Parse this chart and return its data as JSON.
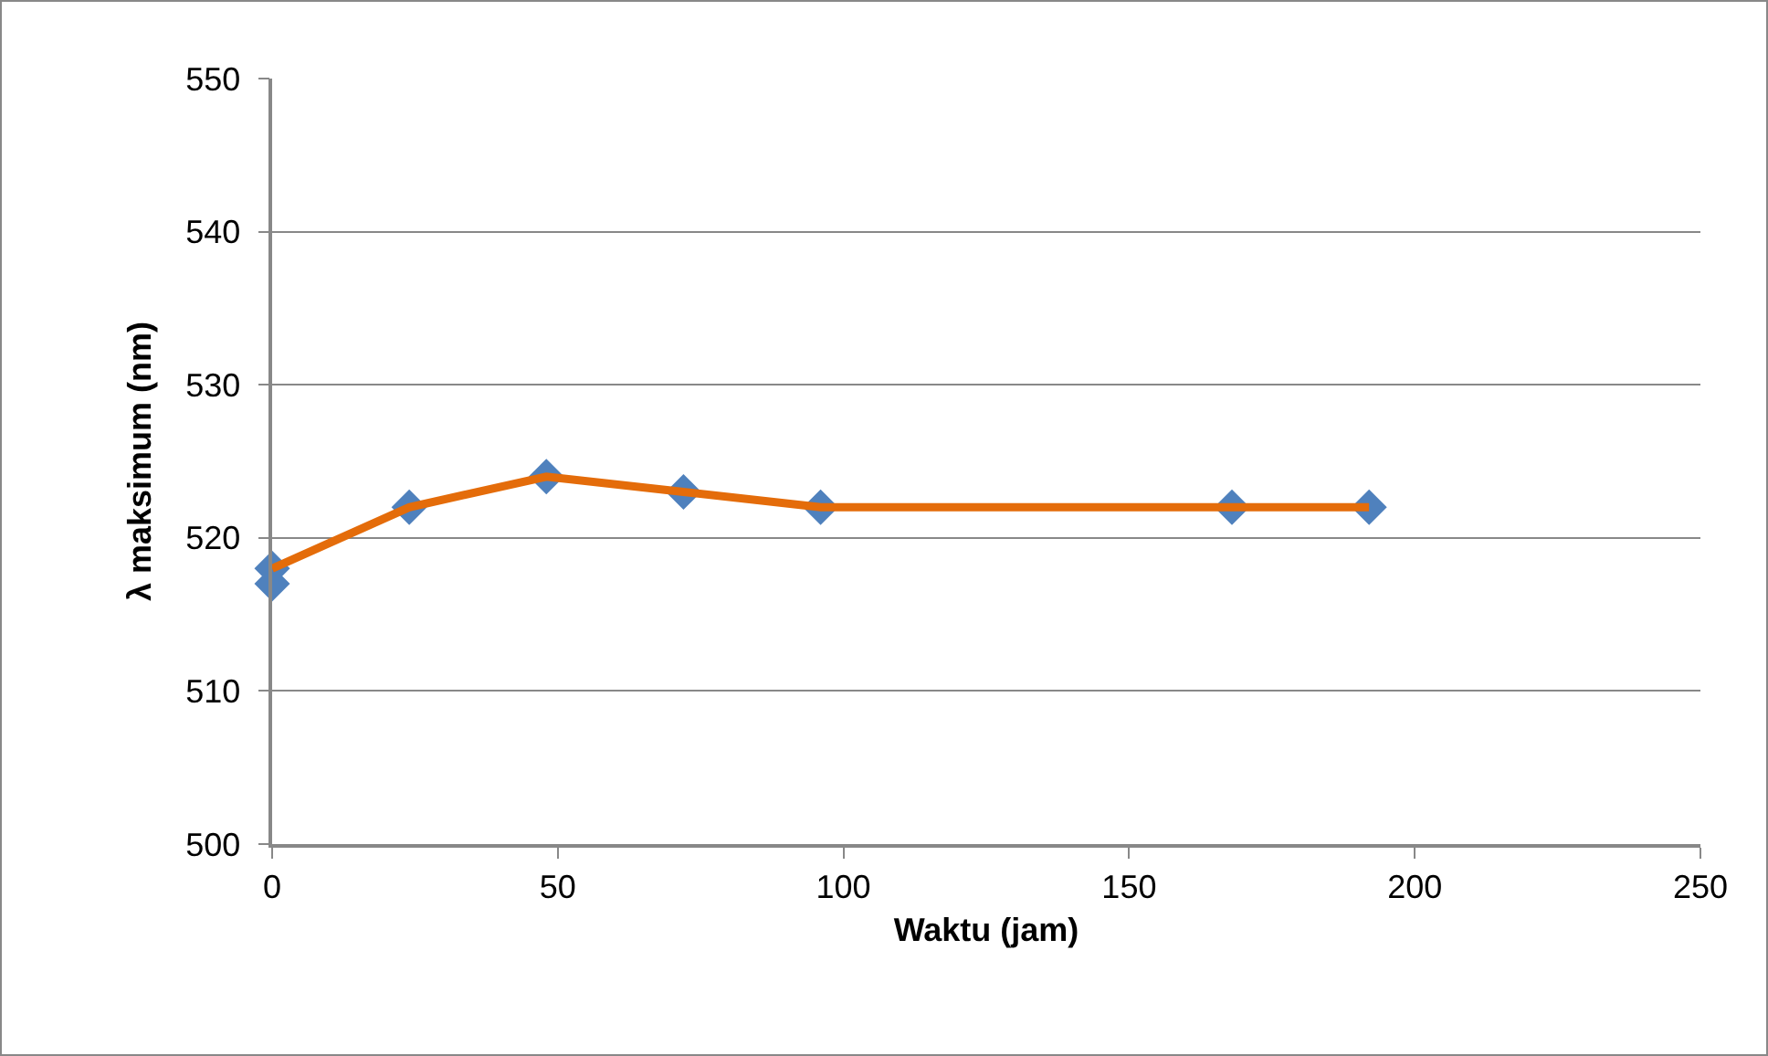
{
  "chart_data": {
    "type": "line",
    "xlabel": "Waktu (jam)",
    "ylabel": "λ maksimum (nm)",
    "series": [
      {
        "type": "scatter",
        "color": "#4f81bd",
        "x": [
          0,
          0,
          24,
          48,
          72,
          96,
          168,
          192
        ],
        "values": [
          517,
          518,
          522,
          524,
          523,
          522,
          522,
          522
        ],
        "marker": "diamond"
      },
      {
        "color": "#e46c0a",
        "x": [
          0,
          24,
          48,
          72,
          96,
          168,
          192
        ],
        "values": [
          518,
          522,
          524,
          523,
          522,
          522,
          522
        ],
        "marker": "none"
      }
    ],
    "xlim": [
      0,
      250
    ],
    "xticks": [
      0,
      50,
      100,
      150,
      200,
      250
    ],
    "ylim": [
      500,
      550
    ],
    "yticks": [
      500,
      510,
      520,
      530,
      540,
      550
    ],
    "grid": "y"
  }
}
